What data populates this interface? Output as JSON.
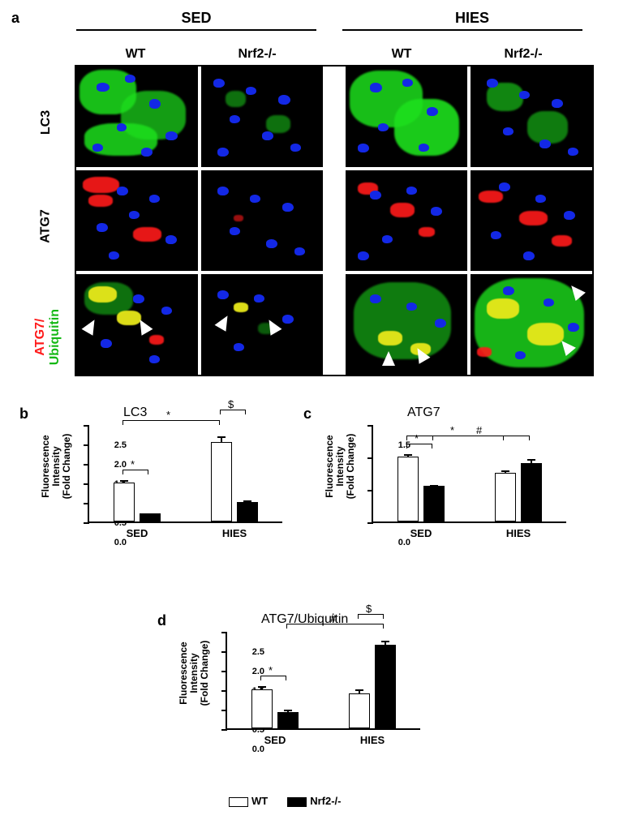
{
  "panel_a": {
    "label": "a",
    "conditions": {
      "left": "SED",
      "right": "HIES"
    },
    "genotypes": [
      "WT",
      "Nrf2-/-",
      "WT",
      "Nrf2-/-"
    ],
    "row_labels": {
      "r1": "LC3",
      "r2": "ATG7",
      "r3_line1": "ATG7/",
      "r3_line2": "Ubiquitin"
    },
    "colors": {
      "nuclei": "#1328e6",
      "green": "#1de01d",
      "red": "#ff1a1a",
      "yellow": "#e8e81a",
      "arrow": "#ffffff",
      "background": "#000000"
    }
  },
  "charts": {
    "y_axis_label_line1": "Fluorescence Intensity",
    "y_axis_label_line2": "(Fold Change)",
    "legend": {
      "wt": "WT",
      "ko": "Nrf2-/-"
    },
    "x_categories": [
      "SED",
      "HIES"
    ],
    "colors": {
      "wt_bar": "#ffffff",
      "ko_bar": "#000000",
      "axis": "#000000"
    },
    "panel_b": {
      "label": "b",
      "title": "LC3",
      "ymax": 2.5,
      "ytick_step": 0.5,
      "values": {
        "SED_WT": 1.0,
        "SED_WT_err": 0.09,
        "SED_KO": 0.2,
        "SED_KO_err": 0.03,
        "HIES_WT": 2.05,
        "HIES_WT_err": 0.15,
        "HIES_KO": 0.5,
        "HIES_KO_err": 0.07
      },
      "sig": [
        {
          "sym": "*",
          "from": "SED_WT",
          "to": "SED_KO"
        },
        {
          "sym": "*",
          "from": "SED_WT",
          "to": "HIES_WT"
        },
        {
          "sym": "$",
          "from": "HIES_WT",
          "to": "HIES_KO"
        }
      ]
    },
    "panel_c": {
      "label": "c",
      "title": "ATG7",
      "ymax": 1.5,
      "ytick_step": 0.5,
      "values": {
        "SED_WT": 1.0,
        "SED_WT_err": 0.05,
        "SED_KO": 0.55,
        "SED_KO_err": 0.02,
        "HIES_WT": 0.75,
        "HIES_WT_err": 0.05,
        "HIES_KO": 0.9,
        "HIES_KO_err": 0.07
      },
      "sig": [
        {
          "sym": "*",
          "from": "SED_WT",
          "to": "SED_KO"
        },
        {
          "sym": "*",
          "from": "SED_WT",
          "to": "HIES_WT"
        },
        {
          "sym": "#",
          "from": "SED_KO",
          "to": "HIES_KO"
        }
      ]
    },
    "panel_d": {
      "label": "d",
      "title": "ATG7/Ubiquitin",
      "ymax": 2.5,
      "ytick_step": 0.5,
      "values": {
        "SED_WT": 1.0,
        "SED_WT_err": 0.1,
        "SED_KO": 0.42,
        "SED_KO_err": 0.08,
        "HIES_WT": 0.9,
        "HIES_WT_err": 0.12,
        "HIES_KO": 2.15,
        "HIES_KO_err": 0.12
      },
      "sig": [
        {
          "sym": "*",
          "from": "SED_WT",
          "to": "SED_KO"
        },
        {
          "sym": "#",
          "from": "SED_KO",
          "to": "HIES_KO"
        },
        {
          "sym": "$",
          "from": "HIES_WT",
          "to": "HIES_KO"
        }
      ]
    }
  }
}
